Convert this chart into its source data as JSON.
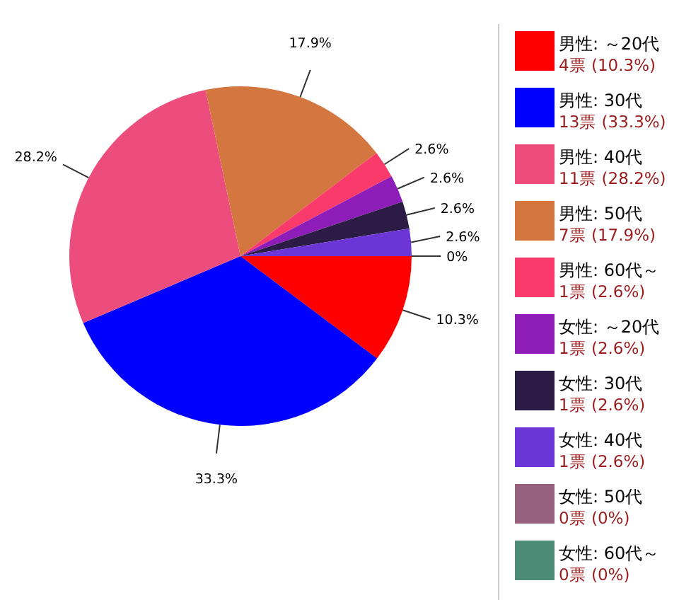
{
  "chart_data": {
    "type": "pie",
    "categories": [
      "男性: ～20代",
      "男性: 30代",
      "男性: 40代",
      "男性: 50代",
      "男性: 60代～",
      "女性: ～20代",
      "女性: 30代",
      "女性: 40代",
      "女性: 50代",
      "女性: 60代～"
    ],
    "values": [
      10.3,
      33.3,
      28.2,
      17.9,
      2.6,
      2.6,
      2.6,
      2.6,
      0,
      0
    ],
    "colors": [
      "#ff0000",
      "#0000ff",
      "#ec4d7c",
      "#d4763f",
      "#fa3a6a",
      "#8e1cb8",
      "#2b1b45",
      "#6c35d6",
      "#97607e",
      "#4b8a75"
    ],
    "value_labels": [
      "10.3%",
      "33.3%",
      "28.2%",
      "17.9%",
      "2.6%",
      "2.6%",
      "2.6%",
      "2.6%",
      "0%",
      null
    ],
    "annotations": [
      "4票 (10.3%)",
      "13票 (33.3%)",
      "11票 (28.2%)",
      "7票 (17.9%)",
      "1票 (2.6%)",
      "1票 (2.6%)",
      "1票 (2.6%)",
      "1票 (2.6%)",
      "0票 (0%)",
      "0票 (0%)"
    ],
    "legend": "right"
  }
}
